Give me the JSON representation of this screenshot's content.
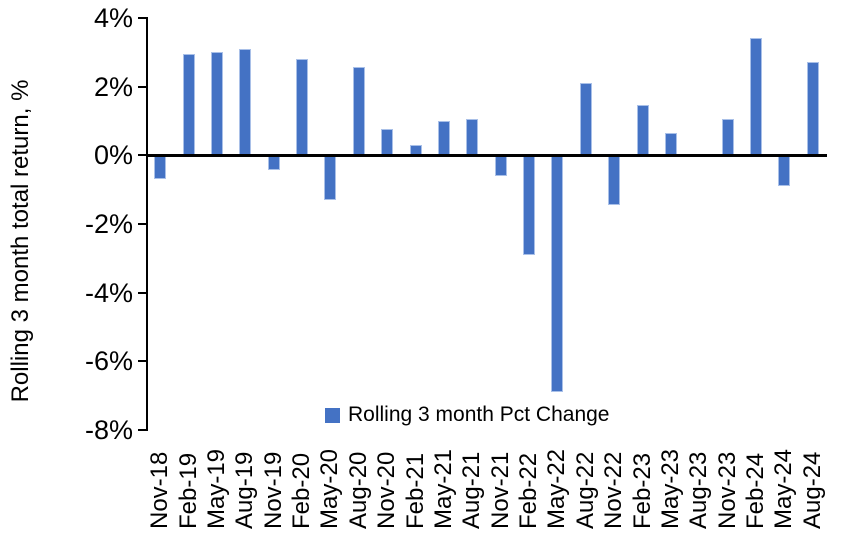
{
  "chart_data": {
    "type": "bar",
    "title": "",
    "ylabel": "Rolling 3 month total return, %",
    "xlabel": "",
    "ylim": [
      -8,
      4
    ],
    "ytick_step": 2,
    "ytick_values": [
      4,
      2,
      0,
      -2,
      -4,
      -6,
      -8
    ],
    "ytick_labels": [
      "4%",
      "2%",
      "0%",
      "-2%",
      "-4%",
      "-6%",
      "-8%"
    ],
    "grid": false,
    "legend_position": "bottom-center",
    "categories": [
      "Nov-18",
      "Feb-19",
      "May-19",
      "Aug-19",
      "Nov-19",
      "Feb-20",
      "May-20",
      "Aug-20",
      "Nov-20",
      "Feb-21",
      "May-21",
      "Aug-21",
      "Nov-21",
      "Feb-22",
      "May-22",
      "Aug-22",
      "Nov-22",
      "Feb-23",
      "May-23",
      "Aug-23",
      "Nov-23",
      "Feb-24",
      "May-24",
      "Aug-24"
    ],
    "series": [
      {
        "name": "Rolling 3 month Pct Change",
        "color": "#4472C4",
        "values": [
          -0.7,
          2.95,
          3.0,
          3.1,
          -0.45,
          2.8,
          -1.3,
          2.55,
          0.75,
          0.3,
          1.0,
          1.05,
          -0.6,
          -2.9,
          -6.9,
          2.1,
          -1.45,
          1.45,
          0.65,
          0.0,
          1.05,
          3.4,
          -0.9,
          2.7
        ]
      }
    ]
  },
  "colors": {
    "bar_fill": "#4472C4",
    "bar_edge": "#A9C0E8",
    "axis": "#000000",
    "text": "#000000",
    "background": "#FFFFFF"
  }
}
